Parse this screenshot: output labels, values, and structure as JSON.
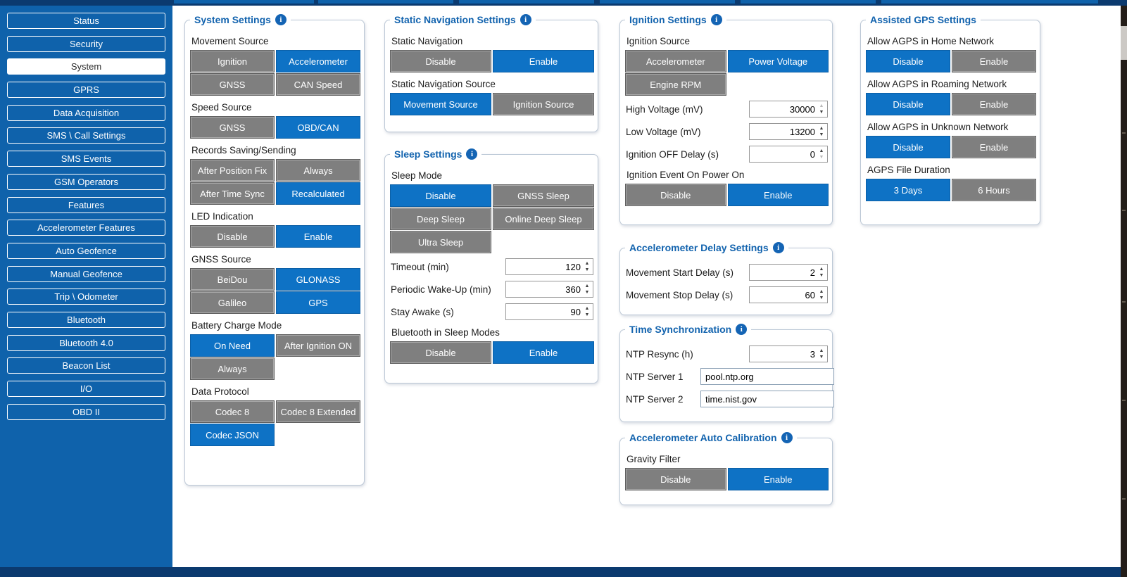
{
  "colors": {
    "navy_bar": "#0b3a6f",
    "sidebar_blue": "#0f62ab",
    "accent_blue": "#0e72c5",
    "button_gray": "#7f7f7f",
    "panel_title_blue": "#1263ae"
  },
  "icons": {
    "info_icon": "i",
    "spinner_up_icon": "▲",
    "spinner_down_icon": "▼"
  },
  "sidebar": {
    "items": [
      {
        "label": "Status",
        "selected": false
      },
      {
        "label": "Security",
        "selected": false
      },
      {
        "label": "System",
        "selected": true
      },
      {
        "label": "GPRS",
        "selected": false
      },
      {
        "label": "Data Acquisition",
        "selected": false
      },
      {
        "label": "SMS \\ Call Settings",
        "selected": false
      },
      {
        "label": "SMS Events",
        "selected": false
      },
      {
        "label": "GSM Operators",
        "selected": false
      },
      {
        "label": "Features",
        "selected": false
      },
      {
        "label": "Accelerometer Features",
        "selected": false
      },
      {
        "label": "Auto Geofence",
        "selected": false
      },
      {
        "label": "Manual Geofence",
        "selected": false
      },
      {
        "label": "Trip \\ Odometer",
        "selected": false
      },
      {
        "label": "Bluetooth",
        "selected": false
      },
      {
        "label": "Bluetooth 4.0",
        "selected": false
      },
      {
        "label": "Beacon List",
        "selected": false
      },
      {
        "label": "I/O",
        "selected": false
      },
      {
        "label": "OBD II",
        "selected": false
      }
    ]
  },
  "panels": [
    {
      "id": "system-settings",
      "title": "System Settings",
      "info_icon": true,
      "items": [
        {
          "type": "label",
          "text": "Movement Source"
        },
        {
          "type": "buttons",
          "options": [
            {
              "label": "Ignition",
              "selected": false
            },
            {
              "label": "Accelerometer",
              "selected": true
            }
          ]
        },
        {
          "type": "buttons",
          "options": [
            {
              "label": "GNSS",
              "selected": false
            },
            {
              "label": "CAN Speed",
              "selected": false
            }
          ]
        },
        {
          "type": "label",
          "text": "Speed Source"
        },
        {
          "type": "buttons",
          "options": [
            {
              "label": "GNSS",
              "selected": false
            },
            {
              "label": "OBD/CAN",
              "selected": true
            }
          ]
        },
        {
          "type": "label",
          "text": "Records Saving/Sending"
        },
        {
          "type": "buttons",
          "options": [
            {
              "label": "After Position Fix",
              "selected": false
            },
            {
              "label": "Always",
              "selected": false
            }
          ]
        },
        {
          "type": "buttons",
          "options": [
            {
              "label": "After Time Sync",
              "selected": false
            },
            {
              "label": "Recalculated",
              "selected": true
            }
          ]
        },
        {
          "type": "label",
          "text": "LED Indication"
        },
        {
          "type": "buttons",
          "options": [
            {
              "label": "Disable",
              "selected": false
            },
            {
              "label": "Enable",
              "selected": true
            }
          ]
        },
        {
          "type": "label",
          "text": "GNSS Source"
        },
        {
          "type": "buttons",
          "options": [
            {
              "label": "BeiDou",
              "selected": false
            },
            {
              "label": "GLONASS",
              "selected": true
            }
          ]
        },
        {
          "type": "buttons",
          "options": [
            {
              "label": "Galileo",
              "selected": false
            },
            {
              "label": "GPS",
              "selected": true
            }
          ]
        },
        {
          "type": "label",
          "text": "Battery Charge Mode"
        },
        {
          "type": "buttons",
          "options": [
            {
              "label": "On Need",
              "selected": true
            },
            {
              "label": "After Ignition ON",
              "selected": false
            }
          ]
        },
        {
          "type": "buttons",
          "half": true,
          "options": [
            {
              "label": "Always",
              "selected": false
            }
          ]
        },
        {
          "type": "label",
          "text": "Data Protocol"
        },
        {
          "type": "buttons",
          "options": [
            {
              "label": "Codec 8",
              "selected": false
            },
            {
              "label": "Codec 8 Extended",
              "selected": false
            }
          ]
        },
        {
          "type": "buttons",
          "half": true,
          "options": [
            {
              "label": "Codec JSON",
              "selected": true
            }
          ]
        }
      ]
    },
    {
      "id": "static-navigation-settings",
      "title": "Static Navigation Settings",
      "info_icon": true,
      "items": [
        {
          "type": "label",
          "text": "Static Navigation"
        },
        {
          "type": "buttons",
          "options": [
            {
              "label": "Disable",
              "selected": false
            },
            {
              "label": "Enable",
              "selected": true
            }
          ]
        },
        {
          "type": "label",
          "text": "Static Navigation Source"
        },
        {
          "type": "buttons",
          "options": [
            {
              "label": "Movement Source",
              "selected": true
            },
            {
              "label": "Ignition Source",
              "selected": false
            }
          ]
        }
      ]
    },
    {
      "id": "sleep-settings",
      "title": "Sleep Settings",
      "info_icon": true,
      "items": [
        {
          "type": "label",
          "text": "Sleep Mode"
        },
        {
          "type": "buttons",
          "options": [
            {
              "label": "Disable",
              "selected": true
            },
            {
              "label": "GNSS Sleep",
              "selected": false
            }
          ]
        },
        {
          "type": "buttons",
          "options": [
            {
              "label": "Deep Sleep",
              "selected": false
            },
            {
              "label": "Online Deep Sleep",
              "selected": false
            }
          ]
        },
        {
          "type": "buttons",
          "half": true,
          "options": [
            {
              "label": "Ultra Sleep",
              "selected": false
            }
          ]
        },
        {
          "type": "spinner",
          "label": "Timeout (min)",
          "value": "120",
          "up_dim": false,
          "down_dim": false
        },
        {
          "type": "spinner",
          "label": "Periodic Wake-Up (min)",
          "value": "360",
          "up_dim": false,
          "down_dim": false
        },
        {
          "type": "spinner",
          "label": "Stay Awake (s)",
          "value": "90",
          "up_dim": false,
          "down_dim": false
        },
        {
          "type": "label",
          "text": "Bluetooth in Sleep Modes"
        },
        {
          "type": "buttons",
          "options": [
            {
              "label": "Disable",
              "selected": false
            },
            {
              "label": "Enable",
              "selected": true
            }
          ]
        }
      ]
    },
    {
      "id": "ignition-settings",
      "title": "Ignition Settings",
      "info_icon": true,
      "items": [
        {
          "type": "label",
          "text": "Ignition Source"
        },
        {
          "type": "buttons",
          "options": [
            {
              "label": "Accelerometer",
              "selected": false
            },
            {
              "label": "Power Voltage",
              "selected": true
            }
          ]
        },
        {
          "type": "buttons",
          "half": true,
          "options": [
            {
              "label": "Engine RPM",
              "selected": false
            }
          ]
        },
        {
          "type": "spinner",
          "label": "High Voltage (mV)",
          "value": "30000",
          "up_dim": true,
          "down_dim": false
        },
        {
          "type": "spinner",
          "label": "Low Voltage (mV)",
          "value": "13200",
          "up_dim": false,
          "down_dim": false
        },
        {
          "type": "spinner",
          "label": "Ignition OFF Delay (s)",
          "value": "0",
          "up_dim": false,
          "down_dim": true
        },
        {
          "type": "label",
          "text": "Ignition Event On Power On"
        },
        {
          "type": "buttons",
          "options": [
            {
              "label": "Disable",
              "selected": false
            },
            {
              "label": "Enable",
              "selected": true
            }
          ]
        }
      ]
    },
    {
      "id": "accelerometer-delay-settings",
      "title": "Accelerometer Delay Settings",
      "info_icon": true,
      "items": [
        {
          "type": "spinner",
          "label": "Movement Start Delay (s)",
          "value": "2",
          "up_dim": false,
          "down_dim": false
        },
        {
          "type": "spinner",
          "label": "Movement Stop Delay (s)",
          "value": "60",
          "up_dim": false,
          "down_dim": false
        }
      ]
    },
    {
      "id": "time-synchronization",
      "title": "Time Synchronization",
      "info_icon": true,
      "items": [
        {
          "type": "spinner",
          "label": "NTP Resync (h)",
          "value": "3",
          "up_dim": false,
          "down_dim": false
        },
        {
          "type": "text_input",
          "label": "NTP Server 1",
          "value": "pool.ntp.org"
        },
        {
          "type": "text_input",
          "label": "NTP Server 2",
          "value": "time.nist.gov"
        }
      ]
    },
    {
      "id": "accelerometer-auto-calibration",
      "title": "Accelerometer Auto Calibration",
      "info_icon": true,
      "items": [
        {
          "type": "label",
          "text": "Gravity Filter"
        },
        {
          "type": "buttons",
          "options": [
            {
              "label": "Disable",
              "selected": false
            },
            {
              "label": "Enable",
              "selected": true
            }
          ]
        }
      ]
    },
    {
      "id": "assisted-gps-settings",
      "title": "Assisted GPS Settings",
      "info_icon": false,
      "items": [
        {
          "type": "label",
          "text": "Allow AGPS in Home Network"
        },
        {
          "type": "buttons",
          "options": [
            {
              "label": "Disable",
              "selected": true
            },
            {
              "label": "Enable",
              "selected": false
            }
          ]
        },
        {
          "type": "label",
          "text": "Allow AGPS in Roaming Network"
        },
        {
          "type": "buttons",
          "options": [
            {
              "label": "Disable",
              "selected": true
            },
            {
              "label": "Enable",
              "selected": false
            }
          ]
        },
        {
          "type": "label",
          "text": "Allow AGPS in Unknown Network"
        },
        {
          "type": "buttons",
          "options": [
            {
              "label": "Disable",
              "selected": true
            },
            {
              "label": "Enable",
              "selected": false
            }
          ]
        },
        {
          "type": "label",
          "text": "AGPS File Duration"
        },
        {
          "type": "buttons",
          "options": [
            {
              "label": "3 Days",
              "selected": true
            },
            {
              "label": "6 Hours",
              "selected": false
            }
          ]
        }
      ]
    }
  ]
}
